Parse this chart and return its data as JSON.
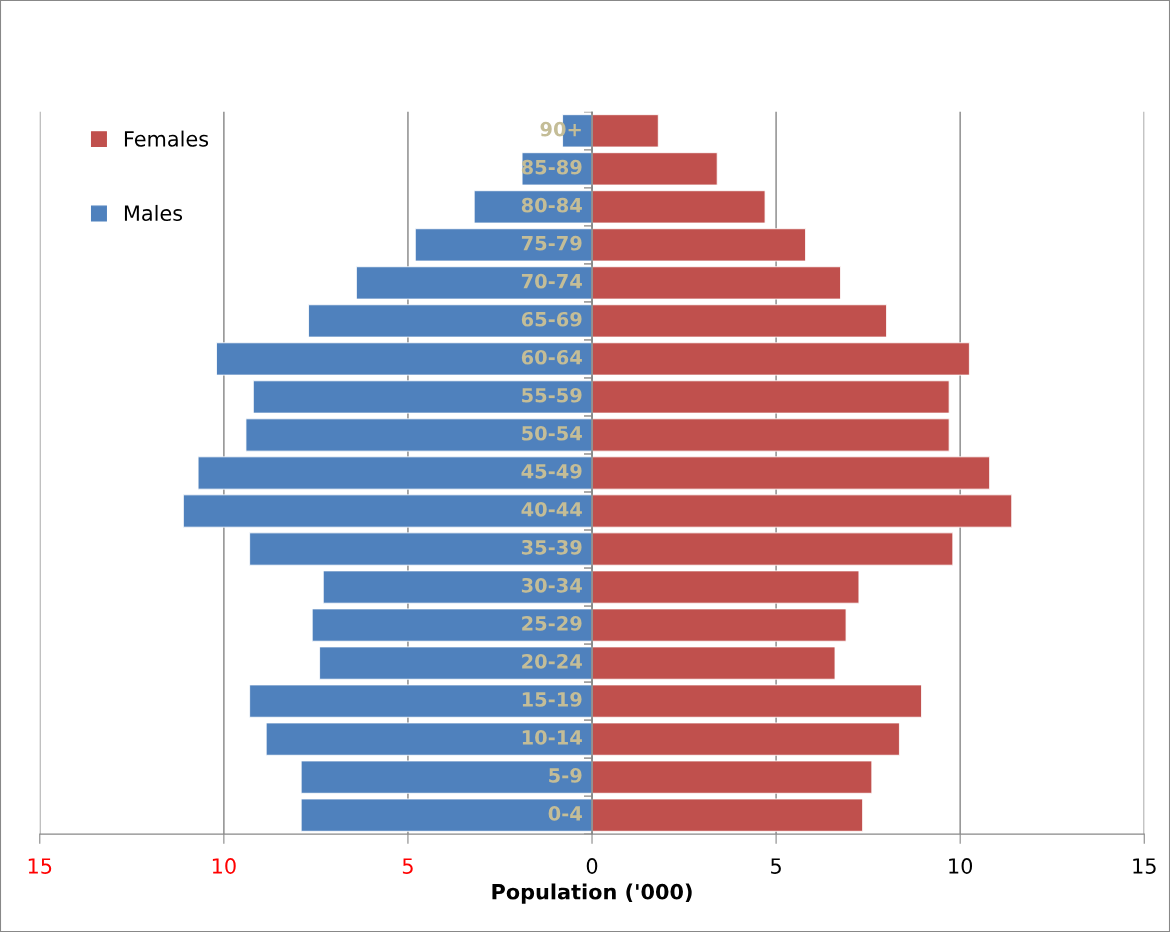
{
  "chart_data": {
    "type": "bar",
    "orientation": "horizontal",
    "stacked": true,
    "xlabel": "Population ('000)",
    "categories": [
      "90+",
      "85-89",
      "80-84",
      "75-79",
      "70-74",
      "65-69",
      "60-64",
      "55-59",
      "50-54",
      "45-49",
      "40-44",
      "35-39",
      "30-34",
      "25-29",
      "20-24",
      "15-19",
      "10-14",
      "5-9",
      "0-4"
    ],
    "series": [
      {
        "name": "Females",
        "color": "#c0504d",
        "values": [
          1.8,
          3.4,
          4.7,
          5.8,
          6.75,
          8.0,
          10.25,
          9.7,
          9.7,
          10.8,
          11.4,
          9.8,
          7.25,
          6.9,
          6.6,
          8.95,
          8.35,
          7.6,
          7.35
        ]
      },
      {
        "name": "Males",
        "color": "#4f81bd",
        "values": [
          -0.8,
          -1.9,
          -3.2,
          -4.8,
          -6.4,
          -7.7,
          -10.2,
          -9.2,
          -9.4,
          -10.7,
          -11.1,
          -9.3,
          -7.3,
          -7.6,
          -7.4,
          -9.3,
          -8.85,
          -7.9,
          -7.9
        ]
      }
    ],
    "xlim": [
      -15,
      15
    ],
    "xticks": [
      {
        "value": -15,
        "label": "15"
      },
      {
        "value": -10,
        "label": "10"
      },
      {
        "value": -5,
        "label": "5"
      },
      0,
      5,
      10,
      15
    ],
    "grid": "x",
    "legend": "top left"
  }
}
